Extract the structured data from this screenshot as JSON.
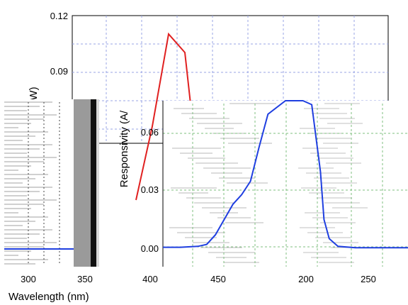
{
  "chart_data": [
    {
      "type": "line",
      "panel": "back",
      "ylim": [
        0,
        0.12
      ],
      "yticks": [
        "0.12",
        "0.09"
      ],
      "grid": true,
      "series": [
        {
          "color": "#e02020",
          "x": [
            200,
            210,
            220,
            230,
            235
          ],
          "y": [
            0.02,
            0.06,
            0.11,
            0.1,
            0.06
          ]
        }
      ]
    },
    {
      "type": "line",
      "panel": "front",
      "ylabel": "Responsivity (A/",
      "xlim": [
        400,
        540
      ],
      "ylim": [
        0,
        0.07
      ],
      "yticks": [
        "0.00",
        "0.03",
        "0.06"
      ],
      "grid": true,
      "series": [
        {
          "color": "#1f3fe0",
          "x": [
            400,
            410,
            420,
            425,
            430,
            440,
            445,
            450,
            455,
            460,
            470,
            480,
            485,
            490,
            492,
            495,
            500,
            510,
            530,
            540
          ],
          "y": [
            0.0005,
            0.0005,
            0.001,
            0.002,
            0.007,
            0.023,
            0.028,
            0.035,
            0.053,
            0.07,
            0.09,
            0.09,
            0.075,
            0.04,
            0.015,
            0.005,
            0.001,
            0.0003,
            0.0003,
            0.0003
          ]
        }
      ]
    }
  ],
  "left_panel": {
    "line_color": "#1f3fe0",
    "x_ticks": [
      "300",
      "350"
    ]
  },
  "x_axis": {
    "labels": [
      "300",
      "350",
      "400",
      "450",
      "200",
      "250"
    ],
    "title": "Wavelength (nm)"
  },
  "back_ylabel_fragment": "W)"
}
